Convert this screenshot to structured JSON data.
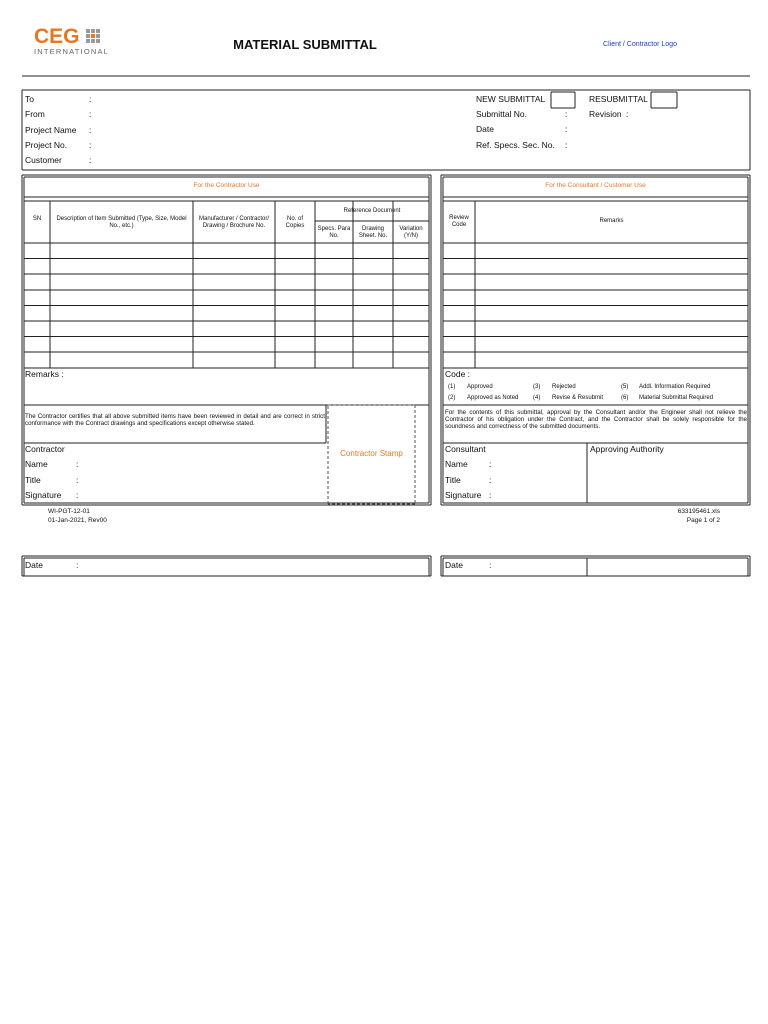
{
  "header": {
    "logo_main": "CEG",
    "logo_sub": "INTERNATIONAL",
    "title": "MATERIAL SUBMITTAL",
    "client_logo": "Client / Contractor Logo"
  },
  "info": {
    "separator": ":",
    "left_fields": [
      "To",
      "From",
      "Project Name",
      "Project No.",
      "Customer"
    ],
    "new_submittal": "NEW SUBMITTAL",
    "resubmittal": "RESUBMITTAL",
    "revision": "Revision",
    "right_fields": [
      "Submittal No.",
      "Date",
      "Ref. Specs. Sec. No."
    ]
  },
  "contractor_table": {
    "heading": "For the Contractor Use",
    "columns": [
      "SN",
      "Description of Item Submitted (Type, Size, Model No., etc.)",
      "Manufacturer / Contractor/ Drawing / Brochure No.",
      "No. of Copies"
    ],
    "reference_document": "Reference Document",
    "reference_columns": [
      "Specs. Para No.",
      "Drawing Sheet. No.",
      "Variation (Y/N)"
    ]
  },
  "consultant_table": {
    "heading": "For the Consultant / Customer Use",
    "columns": [
      "Review Code",
      "Remarks"
    ]
  },
  "remarks_label": "Remarks :",
  "code": {
    "label": "Code :",
    "items": [
      {
        "number": "(1)",
        "text": "Approved"
      },
      {
        "number": "(2)",
        "text": "Approved as Noted"
      },
      {
        "number": "(3)",
        "text": "Rejected"
      },
      {
        "number": "(4)",
        "text": "Revise & Resubmit"
      },
      {
        "number": "(5)",
        "text": "Addl. Information Required"
      },
      {
        "number": "(6)",
        "text": "Material Submittal Required"
      }
    ]
  },
  "certification": "The Contractor certifies that all above submitted items have been reviewed in detail and are correct in strict conformance with the Contract drawings and specifications except otherwise stated.",
  "consultant_note": "For the contents of this submittal, approval by the Consultant and/or the Engineer shall not relieve the Contractor of his obligation under the Contract, and the Contractor shall be solely responsible for the soundness and correctness of the submitted documents.",
  "stamp": "Contractor Stamp",
  "contractor_sign": {
    "title": "Contractor",
    "fields": [
      "Name",
      "Title",
      "Signature"
    ],
    "date": "Date"
  },
  "consultant_sign": {
    "title": "Consultant",
    "fields": [
      "Name",
      "Title",
      "Signature"
    ],
    "approving": "Approving Authority",
    "date": "Date"
  },
  "footer": {
    "form_no": "WI-PGT-12-01",
    "date_rev": "01-Jan-2021, Rev00",
    "file": "633195461.xls",
    "page": "Page 1 of 2"
  }
}
